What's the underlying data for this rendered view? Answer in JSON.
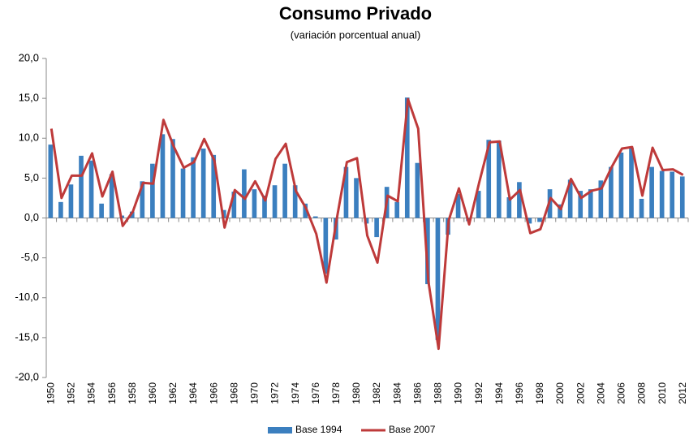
{
  "chart_data": {
    "type": "bar_line",
    "title": "Consumo Privado",
    "subtitle": "(variación porcentual anual)",
    "categories": [
      "1950",
      null,
      "1952",
      null,
      "1954",
      null,
      "1956",
      null,
      "1958",
      null,
      "1960",
      null,
      "1962",
      null,
      "1964",
      null,
      "1966",
      null,
      "1968",
      null,
      "1970",
      null,
      "1972",
      null,
      "1974",
      null,
      "1976",
      null,
      "1978",
      null,
      "1980",
      null,
      "1982",
      null,
      "1984",
      null,
      "1986",
      null,
      "1988",
      null,
      "1990",
      null,
      "1992",
      null,
      "1994",
      null,
      "1996",
      null,
      "1998",
      null,
      "2000",
      null,
      "2002",
      null,
      "2004",
      null,
      "2006",
      null,
      "2008",
      null,
      "2010",
      null,
      "2012"
    ],
    "series": [
      {
        "name": "Base 1994",
        "type": "bar",
        "color": "#3b7fbf",
        "values": [
          9.2,
          2.0,
          4.2,
          7.8,
          7.2,
          1.8,
          5.5,
          0.3,
          0.8,
          4.6,
          6.8,
          10.5,
          9.9,
          6.2,
          7.6,
          8.7,
          7.9,
          1.0,
          3.3,
          6.1,
          3.6,
          2.8,
          4.1,
          6.8,
          4.1,
          1.8,
          0.2,
          -7.0,
          -2.7,
          6.4,
          5.0,
          -0.7,
          -2.4,
          3.9,
          2.0,
          15.1,
          6.9,
          -8.3,
          -15.3,
          -2.1,
          3.0,
          -0.4,
          3.4,
          9.8,
          9.7,
          2.6,
          4.5,
          -0.7,
          -0.5,
          3.6,
          1.7,
          4.8,
          3.4,
          3.6,
          4.7,
          6.4,
          8.2,
          8.8,
          2.4,
          6.4,
          5.9,
          5.8,
          5.2
        ]
      },
      {
        "name": "Base 2007",
        "type": "line",
        "color": "#be3a3a",
        "values": [
          11.2,
          2.5,
          5.3,
          5.3,
          8.1,
          2.7,
          5.8,
          -1.0,
          0.8,
          4.4,
          4.3,
          12.3,
          9.0,
          6.3,
          7.0,
          9.9,
          7.2,
          -1.2,
          3.5,
          2.4,
          4.6,
          2.2,
          7.4,
          9.3,
          3.4,
          1.2,
          -2.0,
          -8.1,
          -0.2,
          7.0,
          7.5,
          -2.2,
          -5.6,
          2.8,
          2.1,
          14.9,
          11.2,
          -7.9,
          -16.4,
          -0.3,
          3.7,
          -0.8,
          4.5,
          9.5,
          9.6,
          2.3,
          3.5,
          -1.9,
          -1.4,
          2.5,
          1.1,
          4.9,
          2.5,
          3.4,
          3.7,
          6.4,
          8.7,
          8.9,
          2.8,
          8.8,
          6.0,
          6.1,
          5.4
        ]
      }
    ],
    "ylim": [
      -20,
      20
    ],
    "yticks": [
      {
        "value": -20,
        "label": "-20,0"
      },
      {
        "value": -15,
        "label": "-15,0"
      },
      {
        "value": -10,
        "label": "-10,0"
      },
      {
        "value": -5,
        "label": "-5,0"
      },
      {
        "value": 0,
        "label": "0,0"
      },
      {
        "value": 5,
        "label": "5,0"
      },
      {
        "value": 10,
        "label": "10,0"
      },
      {
        "value": 15,
        "label": "15,0"
      },
      {
        "value": 20,
        "label": "20,0"
      }
    ],
    "grid": false,
    "legend": "bottom"
  }
}
